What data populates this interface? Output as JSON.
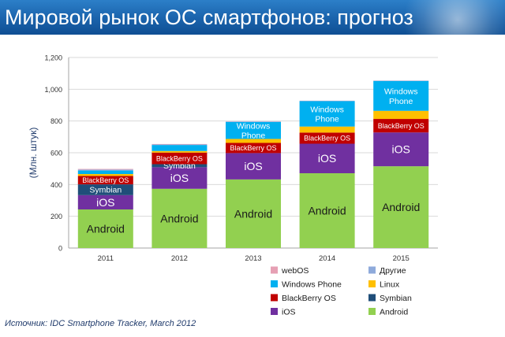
{
  "header": {
    "title": "Мировой рынок ОС смартфонов: прогноз"
  },
  "source": "Источник: IDC Smartphone Tracker, March 2012",
  "colors": {
    "Android": "#92d050",
    "iOS": "#7030a0",
    "Symbian": "#1f4e79",
    "BlackBerry OS": "#c00000",
    "Linux": "#ffc000",
    "Windows Phone": "#00b0f0",
    "Другие": "#8eaadb",
    "webOS": "#e6a0b4"
  },
  "chart_data": {
    "type": "bar",
    "stacked": true,
    "title": "",
    "xlabel": "",
    "ylabel": "(Млн. штук)",
    "ylim": [
      0,
      1200
    ],
    "yticks": [
      0,
      200,
      400,
      600,
      800,
      1000,
      1200
    ],
    "ytick_labels": [
      "0",
      "200",
      "400",
      "600",
      "800",
      "1,000",
      "1,200"
    ],
    "grid": true,
    "legend_position": "bottom-right",
    "categories": [
      "2011",
      "2012",
      "2013",
      "2014",
      "2015"
    ],
    "series": [
      {
        "name": "Android",
        "values": [
          243,
          373,
          432,
          471,
          515
        ],
        "labels": [
          "Android",
          "Android",
          "Android",
          "Android",
          "Android"
        ]
      },
      {
        "name": "iOS",
        "values": [
          90,
          136,
          166,
          186,
          213
        ],
        "labels": [
          "iOS",
          "iOS",
          "iOS",
          "iOS",
          "iOS"
        ]
      },
      {
        "name": "Symbian",
        "values": [
          68,
          19,
          0,
          0,
          0
        ],
        "labels": [
          "Symbian",
          "Symbian",
          "",
          "",
          ""
        ]
      },
      {
        "name": "BlackBerry OS",
        "values": [
          53,
          73,
          64,
          70,
          85
        ],
        "labels": [
          "BlackBerry OS",
          "BlackBerry OS",
          "BlackBerry OS",
          "BlackBerry OS",
          "BlackBerry OS"
        ]
      },
      {
        "name": "Linux",
        "values": [
          12,
          10,
          25,
          38,
          51
        ],
        "labels": [
          "",
          "",
          "",
          "",
          ""
        ]
      },
      {
        "name": "Windows Phone",
        "values": [
          22,
          38,
          107,
          160,
          188
        ],
        "labels": [
          "",
          "",
          "Windows Phone",
          "Windows Phone",
          "Windows Phone"
        ]
      },
      {
        "name": "Другие",
        "values": [
          6,
          3,
          3,
          2,
          2
        ],
        "labels": [
          "",
          "",
          "",
          "",
          ""
        ]
      },
      {
        "name": "webOS",
        "values": [
          4,
          3,
          1,
          1,
          1
        ],
        "labels": [
          "",
          "",
          "",
          "",
          ""
        ]
      }
    ],
    "legend": [
      [
        "webOS",
        "Другие"
      ],
      [
        "Windows Phone",
        "Linux"
      ],
      [
        "BlackBerry OS",
        "Symbian"
      ],
      [
        "iOS",
        "Android"
      ]
    ]
  }
}
